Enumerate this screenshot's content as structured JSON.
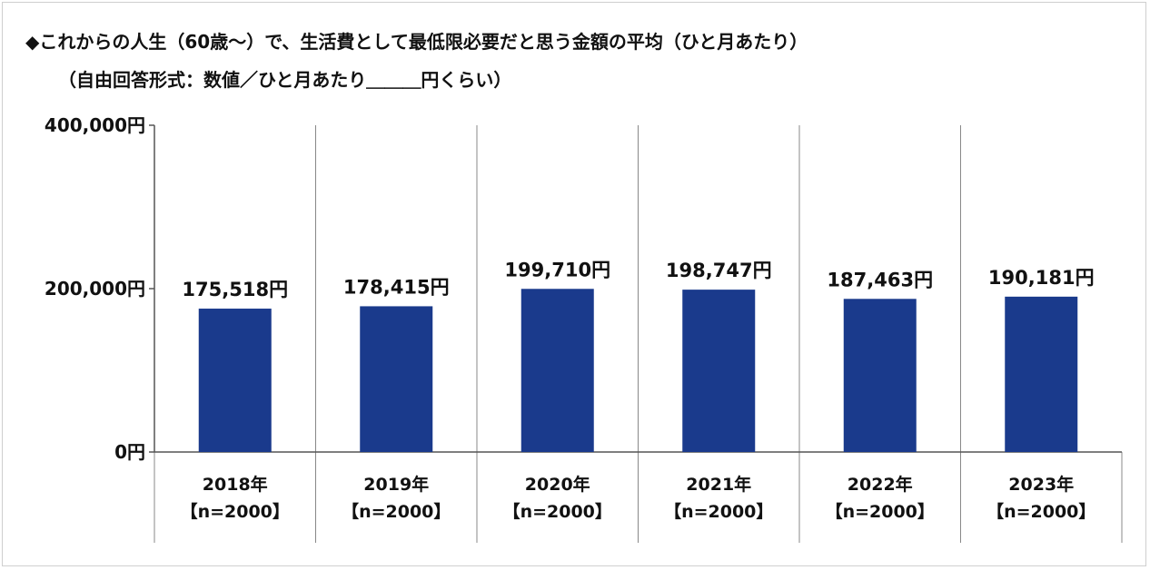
{
  "title": "◆これからの人生（60歳～）で、生活費として最低限必要だと思う金額の平均（ひと月あたり）",
  "subtitle": "（自由回答形式：数値／ひと月あたり＿＿＿円くらい）",
  "colors": {
    "bar": "#1a3a8c",
    "grid": "#888888",
    "axis": "#555555"
  },
  "chart_data": {
    "type": "bar",
    "title": "◆これからの人生（60歳～）で、生活費として最低限必要だと思う金額の平均（ひと月あたり）",
    "subtitle": "（自由回答形式：数値／ひと月あたり＿＿＿円くらい）",
    "categories": [
      "2018年",
      "2019年",
      "2020年",
      "2021年",
      "2022年",
      "2023年"
    ],
    "category_sublabels": [
      "【n=2000】",
      "【n=2000】",
      "【n=2000】",
      "【n=2000】",
      "【n=2000】",
      "【n=2000】"
    ],
    "values": [
      175518,
      178415,
      199710,
      198747,
      187463,
      190181
    ],
    "data_labels": [
      "175,518円",
      "178,415円",
      "199,710円",
      "198,747円",
      "187,463円",
      "190,181円"
    ],
    "ylim": [
      0,
      400000
    ],
    "yticks": [
      0,
      200000,
      400000
    ],
    "ytick_labels": [
      "0円",
      "200,000円",
      "400,000円"
    ],
    "xlabel": "",
    "ylabel": "",
    "grid": "vertical separators",
    "legend": "none"
  }
}
